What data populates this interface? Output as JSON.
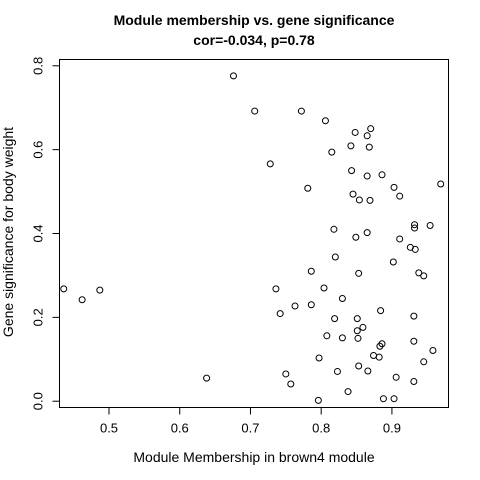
{
  "chart_data": {
    "type": "scatter",
    "title": "Module membership vs. gene significance",
    "subtitle": "cor=-0.034, p=0.78",
    "xlabel": "Module Membership in brown4 module",
    "ylabel": "Gene significance for body weight",
    "xlim": [
      0.43,
      0.98
    ],
    "ylim": [
      -0.015,
      0.815
    ],
    "xticks": [
      0.5,
      0.6,
      0.7,
      0.8,
      0.9
    ],
    "xtick_labels": [
      "0.5",
      "0.6",
      "0.7",
      "0.8",
      "0.9"
    ],
    "yticks": [
      0.0,
      0.2,
      0.4,
      0.6,
      0.8
    ],
    "ytick_labels": [
      "0.0",
      "0.2",
      "0.4",
      "0.6",
      "0.8"
    ],
    "grid": false,
    "points": [
      [
        0.676,
        0.776
      ],
      [
        0.706,
        0.692
      ],
      [
        0.772,
        0.692
      ],
      [
        0.806,
        0.669
      ],
      [
        0.87,
        0.65
      ],
      [
        0.848,
        0.641
      ],
      [
        0.865,
        0.633
      ],
      [
        0.842,
        0.609
      ],
      [
        0.868,
        0.606
      ],
      [
        0.815,
        0.594
      ],
      [
        0.728,
        0.566
      ],
      [
        0.843,
        0.55
      ],
      [
        0.865,
        0.537
      ],
      [
        0.886,
        0.54
      ],
      [
        0.969,
        0.518
      ],
      [
        0.781,
        0.508
      ],
      [
        0.903,
        0.51
      ],
      [
        0.845,
        0.494
      ],
      [
        0.911,
        0.489
      ],
      [
        0.854,
        0.48
      ],
      [
        0.869,
        0.479
      ],
      [
        0.932,
        0.421
      ],
      [
        0.954,
        0.419
      ],
      [
        0.932,
        0.413
      ],
      [
        0.818,
        0.41
      ],
      [
        0.865,
        0.402
      ],
      [
        0.849,
        0.391
      ],
      [
        0.911,
        0.387
      ],
      [
        0.926,
        0.367
      ],
      [
        0.933,
        0.362
      ],
      [
        0.82,
        0.344
      ],
      [
        0.902,
        0.332
      ],
      [
        0.853,
        0.305
      ],
      [
        0.786,
        0.31
      ],
      [
        0.938,
        0.306
      ],
      [
        0.945,
        0.299
      ],
      [
        0.436,
        0.268
      ],
      [
        0.736,
        0.268
      ],
      [
        0.804,
        0.27
      ],
      [
        0.487,
        0.265
      ],
      [
        0.462,
        0.242
      ],
      [
        0.83,
        0.245
      ],
      [
        0.763,
        0.227
      ],
      [
        0.786,
        0.23
      ],
      [
        0.884,
        0.216
      ],
      [
        0.742,
        0.209
      ],
      [
        0.931,
        0.203
      ],
      [
        0.819,
        0.197
      ],
      [
        0.851,
        0.197
      ],
      [
        0.859,
        0.176
      ],
      [
        0.851,
        0.168
      ],
      [
        0.808,
        0.156
      ],
      [
        0.83,
        0.151
      ],
      [
        0.852,
        0.15
      ],
      [
        0.931,
        0.143
      ],
      [
        0.886,
        0.137
      ],
      [
        0.883,
        0.131
      ],
      [
        0.958,
        0.121
      ],
      [
        0.874,
        0.109
      ],
      [
        0.797,
        0.103
      ],
      [
        0.882,
        0.105
      ],
      [
        0.945,
        0.094
      ],
      [
        0.853,
        0.084
      ],
      [
        0.823,
        0.071
      ],
      [
        0.866,
        0.072
      ],
      [
        0.75,
        0.065
      ],
      [
        0.638,
        0.055
      ],
      [
        0.906,
        0.057
      ],
      [
        0.931,
        0.047
      ],
      [
        0.757,
        0.041
      ],
      [
        0.838,
        0.023
      ],
      [
        0.796,
        0.002
      ],
      [
        0.888,
        0.006
      ],
      [
        0.903,
        0.006
      ]
    ]
  }
}
